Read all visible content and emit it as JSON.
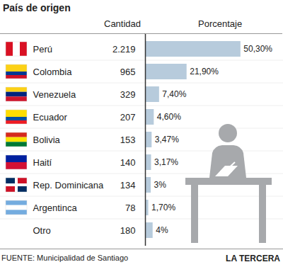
{
  "chart_data": {
    "type": "bar",
    "orientation": "horizontal",
    "title": "País de origen",
    "column_headers": [
      "Cantidad",
      "Porcentaje"
    ],
    "categories": [
      "Perú",
      "Colombia",
      "Venezuela",
      "Ecuador",
      "Bolivia",
      "Haití",
      "Rep. Dominicana",
      "Argentinca",
      "Otro"
    ],
    "counts": [
      2219,
      965,
      329,
      207,
      153,
      140,
      134,
      78,
      180
    ],
    "count_labels": [
      "2.219",
      "965",
      "329",
      "207",
      "153",
      "140",
      "134",
      "78",
      "180"
    ],
    "values": [
      50.3,
      21.9,
      7.4,
      4.6,
      3.47,
      3.17,
      3,
      1.7,
      4
    ],
    "value_labels": [
      "50,30%",
      "21,90%",
      "7,40%",
      "4,60%",
      "3,47%",
      "3,17%",
      "3%",
      "1,70%",
      "4%"
    ],
    "color": "#b7cbdc",
    "xlim": [
      0,
      72
    ],
    "xticks": [],
    "tick_labels": false,
    "data_labels": true,
    "source": "FUENTE: Municipalidad de Santiago",
    "publisher": "LA TERCERA"
  }
}
